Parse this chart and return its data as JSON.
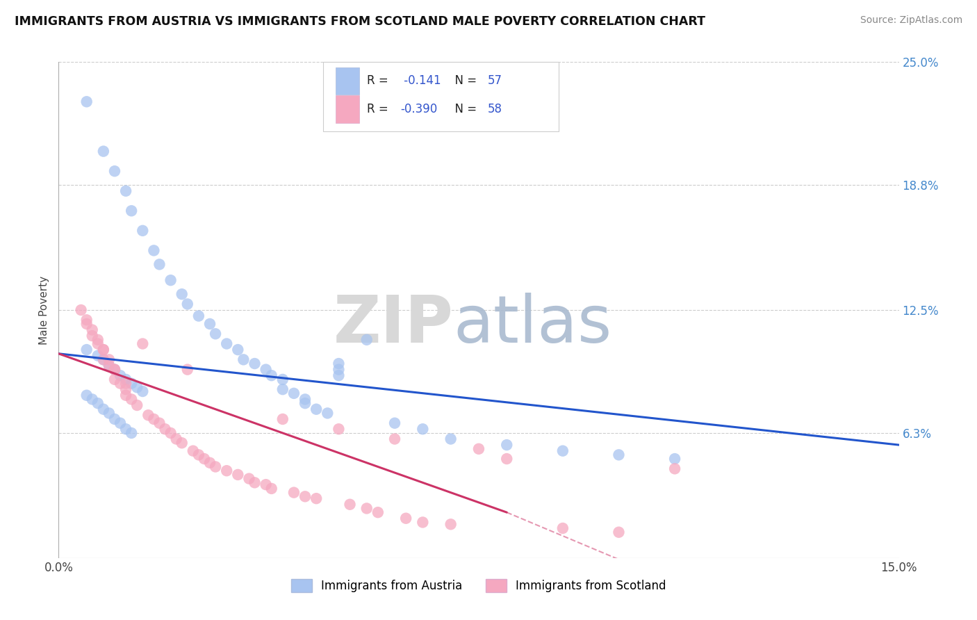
{
  "title": "IMMIGRANTS FROM AUSTRIA VS IMMIGRANTS FROM SCOTLAND MALE POVERTY CORRELATION CHART",
  "source": "Source: ZipAtlas.com",
  "ylabel": "Male Poverty",
  "xlim": [
    0.0,
    0.15
  ],
  "ylim": [
    0.0,
    0.25
  ],
  "ytick_values": [
    0.0,
    0.063,
    0.125,
    0.188,
    0.25
  ],
  "ytick_labels": [
    "",
    "6.3%",
    "12.5%",
    "18.8%",
    "25.0%"
  ],
  "xtick_labels": [
    "0.0%",
    "15.0%"
  ],
  "r_austria": -0.141,
  "n_austria": 57,
  "r_scotland": -0.39,
  "n_scotland": 58,
  "color_austria": "#a8c4f0",
  "color_scotland": "#f5a8c0",
  "line_color_austria": "#2255cc",
  "line_color_scotland": "#cc3366",
  "legend_label_austria": "Immigrants from Austria",
  "legend_label_scotland": "Immigrants from Scotland",
  "austria_x": [
    0.005,
    0.008,
    0.01,
    0.012,
    0.013,
    0.015,
    0.017,
    0.018,
    0.02,
    0.022,
    0.023,
    0.025,
    0.027,
    0.028,
    0.03,
    0.032,
    0.033,
    0.035,
    0.037,
    0.038,
    0.04,
    0.04,
    0.042,
    0.044,
    0.044,
    0.046,
    0.048,
    0.05,
    0.05,
    0.05,
    0.005,
    0.007,
    0.008,
    0.009,
    0.01,
    0.011,
    0.012,
    0.013,
    0.014,
    0.015,
    0.005,
    0.006,
    0.007,
    0.008,
    0.009,
    0.01,
    0.011,
    0.012,
    0.013,
    0.055,
    0.06,
    0.065,
    0.07,
    0.08,
    0.09,
    0.1,
    0.11
  ],
  "austria_y": [
    0.23,
    0.205,
    0.195,
    0.185,
    0.175,
    0.165,
    0.155,
    0.148,
    0.14,
    0.133,
    0.128,
    0.122,
    0.118,
    0.113,
    0.108,
    0.105,
    0.1,
    0.098,
    0.095,
    0.092,
    0.09,
    0.085,
    0.083,
    0.08,
    0.078,
    0.075,
    0.073,
    0.098,
    0.095,
    0.092,
    0.105,
    0.102,
    0.1,
    0.097,
    0.095,
    0.092,
    0.09,
    0.088,
    0.086,
    0.084,
    0.082,
    0.08,
    0.078,
    0.075,
    0.073,
    0.07,
    0.068,
    0.065,
    0.063,
    0.11,
    0.068,
    0.065,
    0.06,
    0.057,
    0.054,
    0.052,
    0.05
  ],
  "scotland_x": [
    0.005,
    0.006,
    0.007,
    0.008,
    0.008,
    0.009,
    0.01,
    0.01,
    0.011,
    0.012,
    0.012,
    0.013,
    0.014,
    0.015,
    0.016,
    0.017,
    0.018,
    0.019,
    0.02,
    0.021,
    0.022,
    0.023,
    0.024,
    0.025,
    0.026,
    0.027,
    0.028,
    0.03,
    0.032,
    0.034,
    0.035,
    0.037,
    0.038,
    0.04,
    0.042,
    0.044,
    0.046,
    0.05,
    0.052,
    0.055,
    0.057,
    0.06,
    0.062,
    0.065,
    0.07,
    0.075,
    0.08,
    0.09,
    0.1,
    0.11,
    0.004,
    0.005,
    0.006,
    0.007,
    0.008,
    0.009,
    0.01,
    0.012
  ],
  "scotland_y": [
    0.118,
    0.112,
    0.108,
    0.105,
    0.1,
    0.097,
    0.095,
    0.09,
    0.088,
    0.085,
    0.082,
    0.08,
    0.077,
    0.108,
    0.072,
    0.07,
    0.068,
    0.065,
    0.063,
    0.06,
    0.058,
    0.095,
    0.054,
    0.052,
    0.05,
    0.048,
    0.046,
    0.044,
    0.042,
    0.04,
    0.038,
    0.037,
    0.035,
    0.07,
    0.033,
    0.031,
    0.03,
    0.065,
    0.027,
    0.025,
    0.023,
    0.06,
    0.02,
    0.018,
    0.017,
    0.055,
    0.05,
    0.015,
    0.013,
    0.045,
    0.125,
    0.12,
    0.115,
    0.11,
    0.105,
    0.1,
    0.095,
    0.088
  ]
}
